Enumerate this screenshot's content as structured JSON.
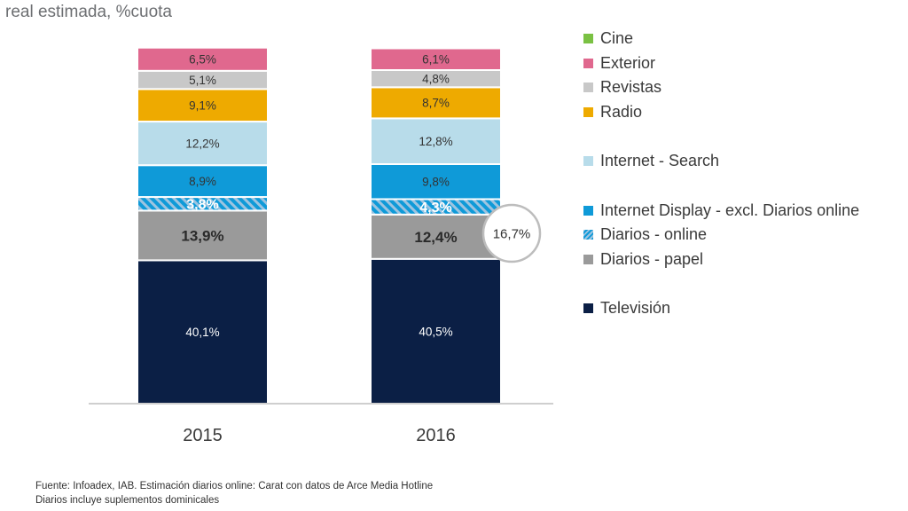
{
  "header": {
    "subtitle": "real estimada, %cuota"
  },
  "chart_data": {
    "type": "bar",
    "stacked": true,
    "categories": [
      "2015",
      "2016"
    ],
    "series": [
      {
        "name": "Televisión",
        "color": "#0b1f45",
        "values": [
          40.1,
          40.5
        ],
        "labels": [
          "40,1%",
          "40,5%"
        ]
      },
      {
        "name": "Diarios - papel",
        "color": "#9a9a9a",
        "values": [
          13.9,
          12.4
        ],
        "labels": [
          "13,9%",
          "12,4%"
        ]
      },
      {
        "name": "Diarios - online",
        "color": "#0f9ad8",
        "pattern": "hatch",
        "values": [
          3.8,
          4.3
        ],
        "labels": [
          "3,8%",
          "4,3%"
        ]
      },
      {
        "name": "Internet Display - excl. Diarios online",
        "color": "#0f9ad8",
        "values": [
          8.9,
          9.8
        ],
        "labels": [
          "8,9%",
          "9,8%"
        ]
      },
      {
        "name": "Internet - Search",
        "color": "#b8dcea",
        "values": [
          12.2,
          12.8
        ],
        "labels": [
          "12,2%",
          "12,8%"
        ]
      },
      {
        "name": "Radio",
        "color": "#eeaa00",
        "values": [
          9.1,
          8.7
        ],
        "labels": [
          "9,1%",
          "8,7%"
        ]
      },
      {
        "name": "Revistas",
        "color": "#c8c8c8",
        "values": [
          5.1,
          4.8
        ],
        "labels": [
          "5,1%",
          "4,8%"
        ]
      },
      {
        "name": "Exterior",
        "color": "#e0688e",
        "values": [
          6.5,
          6.1
        ],
        "labels": [
          "6,5%",
          "6,1%"
        ]
      },
      {
        "name": "Cine",
        "color": "#7ac143",
        "values": [
          0.4,
          0.4
        ],
        "labels": [
          "",
          ""
        ]
      }
    ],
    "legend_order": [
      "Cine",
      "Exterior",
      "Revistas",
      "Radio",
      "Internet - Search",
      "Internet Display - excl. Diarios online",
      "Diarios - online",
      "Diarios - papel",
      "Televisión"
    ],
    "legend_position": "right",
    "callout": {
      "category": "2016",
      "label": "16,7%"
    },
    "ylim": [
      0,
      100
    ],
    "grid": false
  },
  "footer": {
    "source_line1": "Fuente: Infoadex, IAB. Estimación diarios online: Carat con datos de Arce Media Hotline",
    "source_line2": "Diarios incluye suplementos dominicales"
  }
}
